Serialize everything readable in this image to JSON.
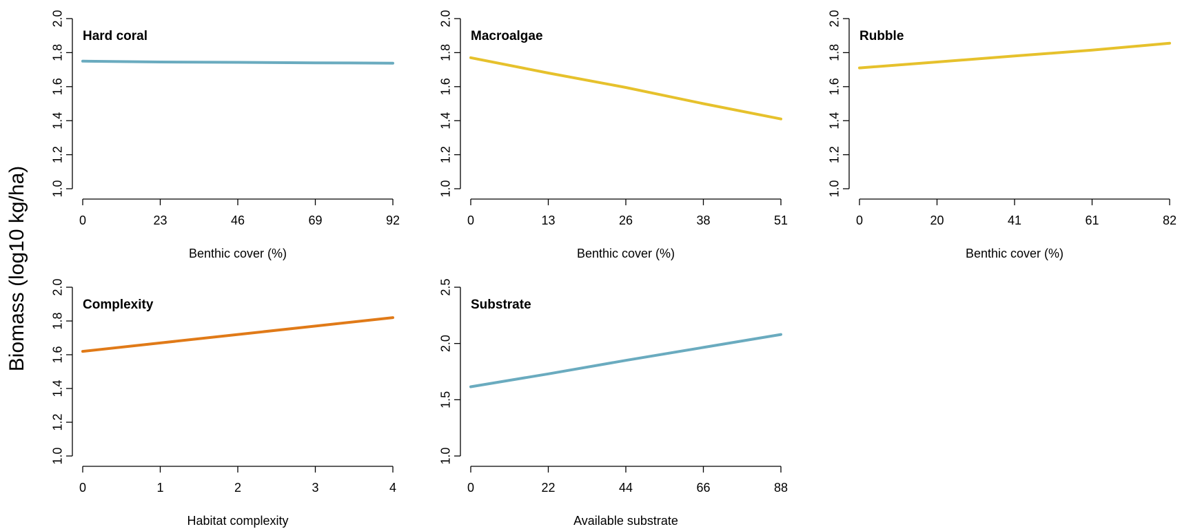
{
  "shared_ylabel": "Biomass (log10 kg/ha)",
  "chart_data": [
    {
      "type": "line",
      "title": "Hard coral",
      "xlabel": "Benthic cover (%)",
      "ylabel": "",
      "xlim": [
        0,
        92
      ],
      "ylim": [
        1.0,
        2.0
      ],
      "xticks": [
        0,
        23,
        46,
        69,
        92
      ],
      "xtick_labels": [
        "0",
        "23",
        "46",
        "69",
        "92"
      ],
      "yticks": [
        1.0,
        1.2,
        1.4,
        1.6,
        1.8,
        2.0
      ],
      "ytick_labels": [
        "1.0",
        "1.2",
        "1.4",
        "1.6",
        "1.8",
        "2.0"
      ],
      "color": "#6AABBF",
      "series": [
        {
          "x": [
            0,
            23,
            46,
            69,
            92
          ],
          "y": [
            1.75,
            1.745,
            1.743,
            1.74,
            1.738
          ]
        }
      ]
    },
    {
      "type": "line",
      "title": "Macroalgae",
      "xlabel": "Benthic cover (%)",
      "ylabel": "",
      "xlim": [
        0,
        51
      ],
      "ylim": [
        1.0,
        2.0
      ],
      "xticks": [
        0,
        12.75,
        25.5,
        38.25,
        51
      ],
      "xtick_labels": [
        "0",
        "13",
        "26",
        "38",
        "51"
      ],
      "yticks": [
        1.0,
        1.2,
        1.4,
        1.6,
        1.8,
        2.0
      ],
      "ytick_labels": [
        "1.0",
        "1.2",
        "1.4",
        "1.6",
        "1.8",
        "2.0"
      ],
      "color": "#E6C12C",
      "series": [
        {
          "x": [
            0,
            12.75,
            25.5,
            38.25,
            51
          ],
          "y": [
            1.77,
            1.68,
            1.595,
            1.5,
            1.41
          ]
        }
      ]
    },
    {
      "type": "line",
      "title": "Rubble",
      "xlabel": "Benthic cover (%)",
      "ylabel": "",
      "xlim": [
        0,
        82
      ],
      "ylim": [
        1.0,
        2.0
      ],
      "xticks": [
        0,
        20.5,
        41,
        61.5,
        82
      ],
      "xtick_labels": [
        "0",
        "20",
        "41",
        "61",
        "82"
      ],
      "yticks": [
        1.0,
        1.2,
        1.4,
        1.6,
        1.8,
        2.0
      ],
      "ytick_labels": [
        "1.0",
        "1.2",
        "1.4",
        "1.6",
        "1.8",
        "2.0"
      ],
      "color": "#E6C12C",
      "series": [
        {
          "x": [
            0,
            20.5,
            41,
            61.5,
            82
          ],
          "y": [
            1.71,
            1.745,
            1.78,
            1.815,
            1.855
          ]
        }
      ]
    },
    {
      "type": "line",
      "title": "Complexity",
      "xlabel": "Habitat complexity",
      "ylabel": "",
      "xlim": [
        0,
        4
      ],
      "ylim": [
        1.0,
        2.0
      ],
      "xticks": [
        0,
        1,
        2,
        3,
        4
      ],
      "xtick_labels": [
        "0",
        "1",
        "2",
        "3",
        "4"
      ],
      "yticks": [
        1.0,
        1.2,
        1.4,
        1.6,
        1.8,
        2.0
      ],
      "ytick_labels": [
        "1.0",
        "1.2",
        "1.4",
        "1.6",
        "1.8",
        "2.0"
      ],
      "color": "#E07A18",
      "series": [
        {
          "x": [
            0,
            1,
            2,
            3,
            4
          ],
          "y": [
            1.62,
            1.67,
            1.72,
            1.77,
            1.82
          ]
        }
      ]
    },
    {
      "type": "line",
      "title": "Substrate",
      "xlabel": "Available substrate",
      "ylabel": "",
      "xlim": [
        0,
        88
      ],
      "ylim": [
        1.0,
        2.5
      ],
      "xticks": [
        0,
        22,
        44,
        66,
        88
      ],
      "xtick_labels": [
        "0",
        "22",
        "44",
        "66",
        "88"
      ],
      "yticks": [
        1.0,
        1.5,
        2.0,
        2.5
      ],
      "ytick_labels": [
        "1.0",
        "1.5",
        "2.0",
        "2.5"
      ],
      "color": "#6AABBF",
      "series": [
        {
          "x": [
            0,
            22,
            44,
            66,
            88
          ],
          "y": [
            1.615,
            1.73,
            1.85,
            1.965,
            2.08
          ]
        }
      ]
    }
  ]
}
